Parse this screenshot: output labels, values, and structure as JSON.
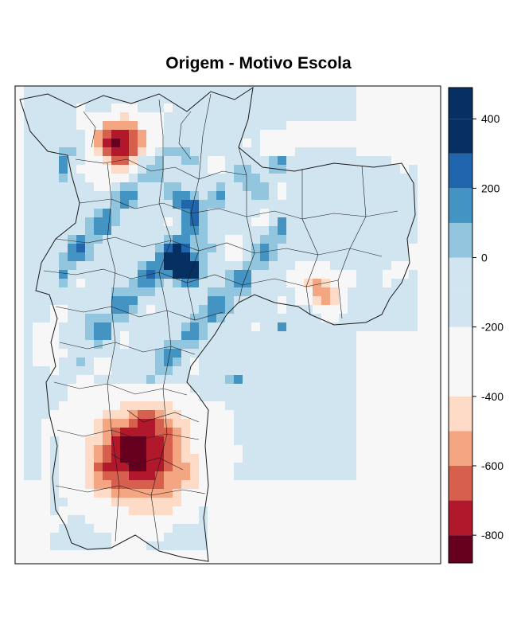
{
  "chart_data": {
    "type": "heatmap",
    "title": "Origem - Motivo Escola",
    "xlabel": "",
    "ylabel": "",
    "color_scale": {
      "breaks": [
        -900,
        -800,
        -700,
        -600,
        -500,
        -400,
        -300,
        -200,
        -100,
        0,
        100,
        200,
        300,
        400,
        500
      ],
      "colors": [
        "#67001f",
        "#b2182b",
        "#d6604d",
        "#f4a582",
        "#fddbc7",
        "#f7f7f7",
        "#f7f7f7",
        "#d1e5f0",
        "#d1e5f0",
        "#92c5de",
        "#4393c3",
        "#2166ac",
        "#053061",
        "#053061"
      ],
      "ticks": [
        -800,
        -600,
        -400,
        -200,
        0,
        200,
        400
      ],
      "tick_labels": [
        "-800",
        "-600",
        "-400",
        "-200",
        "0",
        "200",
        "400"
      ],
      "range": [
        -880,
        490
      ]
    },
    "map_extent": "city outline with district boundaries (São Paulo)",
    "hotspots": [
      {
        "area": "north",
        "value": -820
      },
      {
        "area": "south",
        "value": -850
      },
      {
        "area": "east",
        "value": -580
      },
      {
        "area": "west",
        "value": -350
      },
      {
        "area": "center",
        "value": 470
      },
      {
        "area": "center-north",
        "value": 330
      }
    ]
  }
}
